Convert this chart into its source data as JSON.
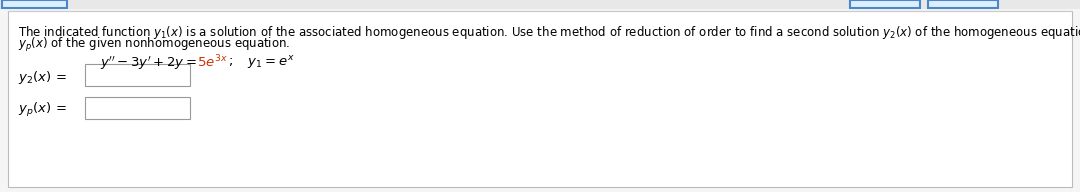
{
  "bg_color": "#f5f5f5",
  "content_bg": "#ffffff",
  "border_color": "#aaaaaa",
  "text_color": "#000000",
  "red_color": "#cc3300",
  "tab_blue": "#4a86c8",
  "font_size_para": 8.5,
  "font_size_eq": 9.5,
  "font_size_label": 9.5,
  "para_line1": "The indicated function $y_1(x)$ is a solution of the associated homogeneous equation. Use the method of reduction of order to find a second solution $y_2(x)$ of the homogeneous equation and a particular solution",
  "para_line2": "$y_p(x)$ of the given nonhomogeneous equation.",
  "eq_black_part": "$y'' - 3y' + 2y = $",
  "eq_red_part": "$5e^{3x}$",
  "eq_black2": "$;\\quad y_1 = e^x$",
  "label1": "$y_2(x)\\, =$",
  "label2": "$y_p(x)\\, =$"
}
